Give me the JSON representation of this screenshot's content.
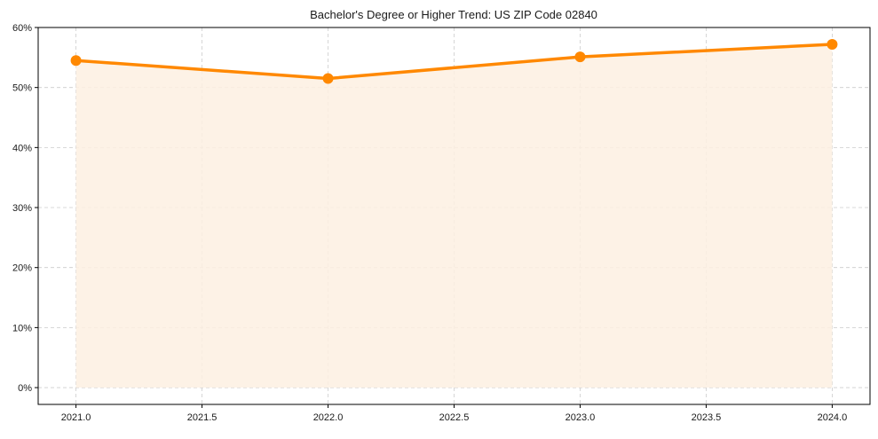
{
  "chart_data": {
    "type": "line",
    "title": "Bachelor's Degree or Higher Trend: US ZIP Code 02840",
    "xlabel": "",
    "ylabel": "",
    "x": [
      2021,
      2022,
      2023,
      2024
    ],
    "series": [
      {
        "name": "Bachelor's Degree or Higher",
        "values": [
          54.5,
          51.5,
          55.1,
          57.2
        ],
        "unit": "%"
      }
    ],
    "xlim": [
      2020.85,
      2024.15
    ],
    "ylim": [
      -2.8,
      60
    ],
    "x_ticks": [
      2021.0,
      2021.5,
      2022.0,
      2022.5,
      2023.0,
      2023.5,
      2024.0
    ],
    "x_tick_labels": [
      "2021.0",
      "2021.5",
      "2022.0",
      "2022.5",
      "2023.0",
      "2023.5",
      "2024.0"
    ],
    "y_ticks": [
      0,
      10,
      20,
      30,
      40,
      50,
      60
    ],
    "y_tick_labels": [
      "0%",
      "10%",
      "20%",
      "30%",
      "40%",
      "50%",
      "60%"
    ],
    "grid": true,
    "grid_style": "dashed",
    "fill_under_line": true,
    "markers": true,
    "legend": null,
    "colors": {
      "line": "#ff8800",
      "fill": "#fdf0e2",
      "grid": "#cccccc",
      "axis": "#000000"
    }
  }
}
